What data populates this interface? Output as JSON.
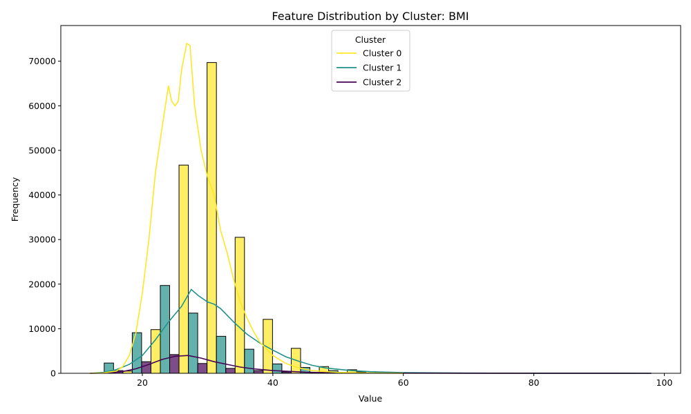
{
  "chart_data": {
    "type": "bar",
    "title": "Feature Distribution by Cluster: BMI",
    "xlabel": "Value",
    "ylabel": "Frequency",
    "xlim": [
      7.5,
      102.5
    ],
    "ylim": [
      0,
      78000
    ],
    "xticks": [
      20,
      40,
      60,
      80,
      100
    ],
    "yticks": [
      0,
      10000,
      20000,
      30000,
      40000,
      50000,
      60000,
      70000
    ],
    "bin_width": 4.3,
    "bin_centers": [
      16.3,
      20.6,
      24.9,
      29.2,
      33.5,
      37.8,
      42.1,
      46.4,
      50.7,
      55.0,
      59.3
    ],
    "legend": {
      "title": "Cluster",
      "position": "upper-center",
      "entries": [
        "Cluster 0",
        "Cluster 1",
        "Cluster 2"
      ]
    },
    "series": [
      {
        "name": "Cluster 0",
        "color": "#fde725",
        "values": [
          500,
          9800,
          46700,
          69700,
          30500,
          12100,
          5600,
          1500,
          800,
          300,
          100
        ],
        "kde": [
          [
            12,
            0
          ],
          [
            14,
            100
          ],
          [
            16,
            500
          ],
          [
            17,
            1500
          ],
          [
            18,
            4000
          ],
          [
            19,
            9000
          ],
          [
            20,
            18000
          ],
          [
            21,
            30000
          ],
          [
            22,
            45000
          ],
          [
            23,
            55000
          ],
          [
            24,
            64500
          ],
          [
            24.5,
            61000
          ],
          [
            25,
            60000
          ],
          [
            25.5,
            61000
          ],
          [
            26,
            68000
          ],
          [
            26.8,
            74000
          ],
          [
            27.3,
            73500
          ],
          [
            28,
            60000
          ],
          [
            29,
            50000
          ],
          [
            30,
            44000
          ],
          [
            31,
            40000
          ],
          [
            32,
            32000
          ],
          [
            33,
            27000
          ],
          [
            34,
            21000
          ],
          [
            35,
            16000
          ],
          [
            36,
            12500
          ],
          [
            37,
            9500
          ],
          [
            38,
            7000
          ],
          [
            40,
            4000
          ],
          [
            42,
            2200
          ],
          [
            44,
            1200
          ],
          [
            46,
            600
          ],
          [
            50,
            200
          ],
          [
            55,
            60
          ],
          [
            60,
            10
          ]
        ]
      },
      {
        "name": "Cluster 1",
        "color": "#21918c",
        "values": [
          2300,
          9100,
          19700,
          13500,
          8300,
          5400,
          2100,
          1300,
          600,
          300,
          100
        ],
        "kde": [
          [
            12,
            0
          ],
          [
            14,
            200
          ],
          [
            16,
            800
          ],
          [
            18,
            2000
          ],
          [
            20,
            4000
          ],
          [
            22,
            7500
          ],
          [
            24,
            11500
          ],
          [
            26,
            15000
          ],
          [
            27.5,
            18800
          ],
          [
            28.5,
            17500
          ],
          [
            30,
            16000
          ],
          [
            31,
            15500
          ],
          [
            32,
            14500
          ],
          [
            34,
            11500
          ],
          [
            36,
            8800
          ],
          [
            38,
            6800
          ],
          [
            40,
            5200
          ],
          [
            42,
            3700
          ],
          [
            44,
            2700
          ],
          [
            46,
            1800
          ],
          [
            48,
            1200
          ],
          [
            50,
            900
          ],
          [
            52,
            600
          ],
          [
            55,
            350
          ],
          [
            60,
            150
          ],
          [
            70,
            50
          ],
          [
            80,
            20
          ],
          [
            98,
            0
          ]
        ]
      },
      {
        "name": "Cluster 2",
        "color": "#440154",
        "values": [
          600,
          2600,
          4200,
          2200,
          1100,
          600,
          300,
          150,
          80,
          40,
          20
        ],
        "kde": [
          [
            12,
            0
          ],
          [
            15,
            100
          ],
          [
            17,
            400
          ],
          [
            19,
            1000
          ],
          [
            21,
            2000
          ],
          [
            23,
            3100
          ],
          [
            25,
            3800
          ],
          [
            27,
            4000
          ],
          [
            29,
            3400
          ],
          [
            31,
            2600
          ],
          [
            33,
            2000
          ],
          [
            35,
            1400
          ],
          [
            37,
            1000
          ],
          [
            40,
            600
          ],
          [
            45,
            250
          ],
          [
            50,
            100
          ],
          [
            55,
            40
          ],
          [
            70,
            10
          ],
          [
            98,
            0
          ]
        ]
      }
    ]
  }
}
